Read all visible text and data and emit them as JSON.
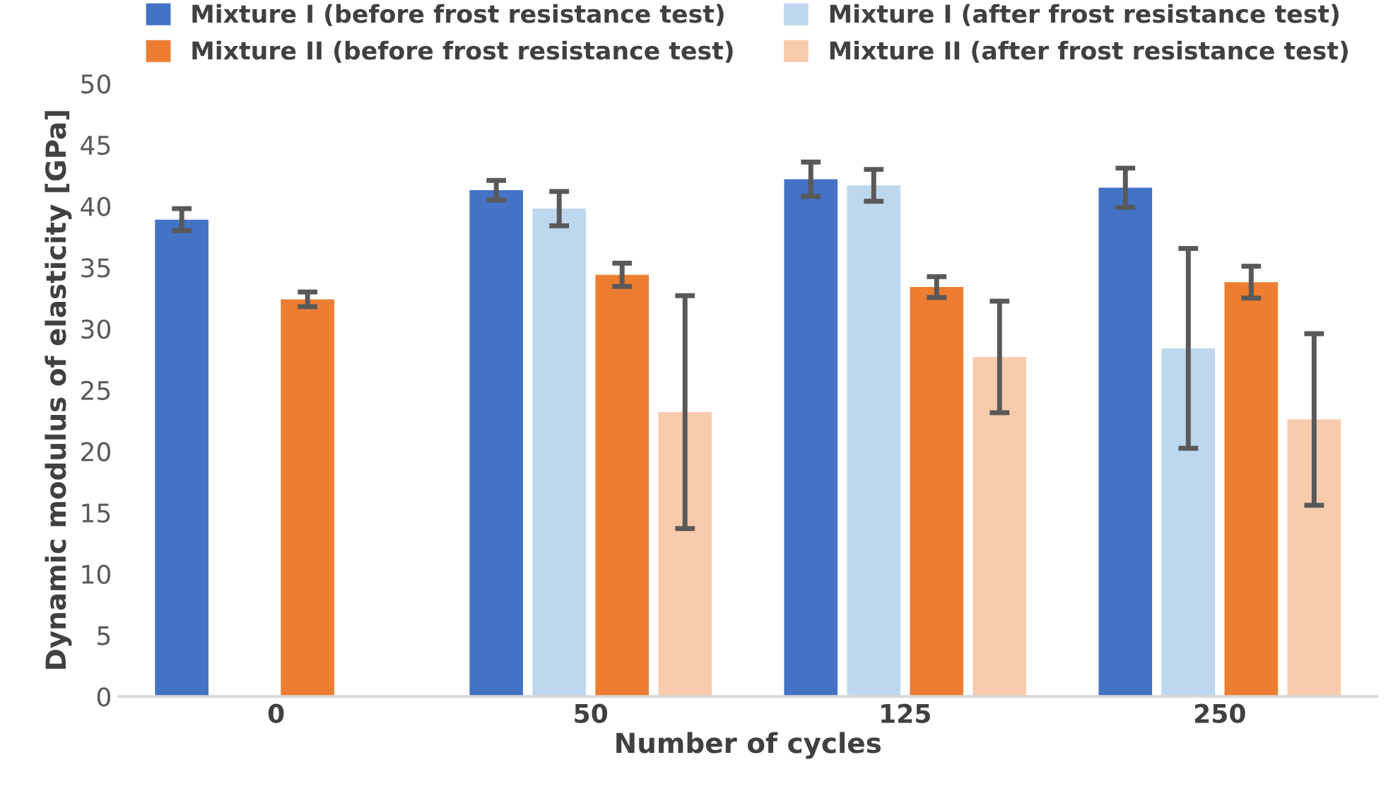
{
  "chart_data": {
    "type": "bar",
    "xlabel": "Number of cycles",
    "ylabel": "Dynamic modulus of elasticity [GPa]",
    "categories": [
      "0",
      "50",
      "125",
      "250"
    ],
    "series": [
      {
        "name": "Mixture I (before frost resistance test)",
        "color": "#4472c4",
        "values": [
          38.9,
          41.3,
          42.2,
          41.5
        ],
        "errors": [
          0.9,
          0.8,
          1.4,
          1.6
        ]
      },
      {
        "name": "Mixture I (after frost resistance test)",
        "color": "#bdd7ee",
        "values": [
          null,
          39.8,
          41.7,
          28.4
        ],
        "errors": [
          null,
          1.4,
          1.3,
          8.15
        ]
      },
      {
        "name": "Mixture II (before frost resistance test)",
        "color": "#ed7d31",
        "values": [
          32.4,
          34.4,
          33.4,
          33.8
        ],
        "errors": [
          0.6,
          0.95,
          0.85,
          1.3
        ]
      },
      {
        "name": "Mixture II (after frost resistance test)",
        "color": "#f8cbad",
        "values": [
          null,
          23.2,
          27.7,
          22.6
        ],
        "errors": [
          null,
          9.5,
          4.55,
          7.0
        ]
      }
    ],
    "ylim": [
      0,
      50
    ],
    "yticks": [
      0,
      5,
      10,
      15,
      20,
      25,
      30,
      35,
      40,
      45,
      50
    ],
    "grid": false,
    "legend": "top"
  }
}
